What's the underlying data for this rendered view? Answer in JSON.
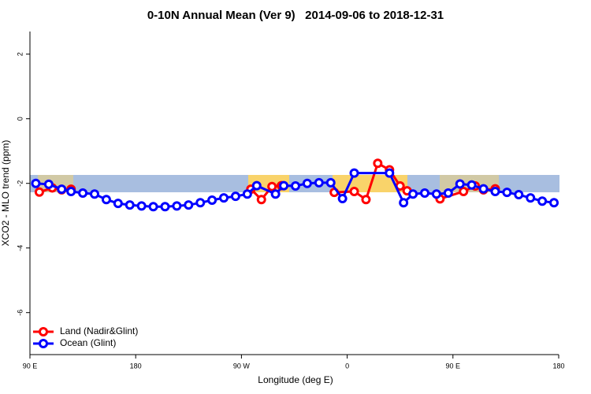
{
  "chart_data": {
    "type": "line",
    "title": "0-10N Annual Mean (Ver 9)   2014-09-06 to 2018-12-31",
    "x_label": "Longitude (deg E)",
    "y_label": "XCO2 - MLO trend (ppm)",
    "xlim": [
      90,
      540
    ],
    "ylim": [
      -7.3,
      2.7
    ],
    "xticks": [
      {
        "value": 90,
        "label": "90 E"
      },
      180,
      {
        "value": 270,
        "label": "90 W"
      },
      {
        "value": 360,
        "label": "0"
      },
      {
        "value": 450,
        "label": "90 E"
      },
      {
        "value": 540,
        "label": "180"
      }
    ],
    "yticks": [
      2,
      0,
      -2,
      -4,
      -6
    ],
    "legend": "bottom-left",
    "series": [
      {
        "name": "Land (Nadir&Glint)",
        "color": "#ff0000",
        "x": [
          98,
          109,
          117,
          125,
          null,
          278,
          287,
          296,
          304,
          null,
          349,
          366,
          376,
          386,
          396,
          405,
          411,
          null,
          439,
          459,
          469,
          476,
          486
        ],
        "values": [
          -2.27,
          -2.14,
          -2.2,
          -2.18,
          null,
          -2.18,
          -2.5,
          -2.1,
          -2.07,
          null,
          -2.28,
          -2.25,
          -2.5,
          -1.38,
          -1.58,
          -2.08,
          -2.23,
          null,
          -2.48,
          -2.25,
          -2.08,
          -2.2,
          -2.17
        ]
      },
      {
        "name": "Ocean (Glint)",
        "color": "#0000ff",
        "x": [
          95,
          106,
          117,
          125,
          135,
          145,
          155,
          165,
          175,
          185,
          195,
          205,
          215,
          225,
          235,
          245,
          255,
          265,
          275,
          283,
          299,
          306,
          316,
          326,
          336,
          346,
          356,
          366,
          396,
          408,
          416,
          426,
          436,
          446,
          456,
          466,
          476,
          486,
          496,
          506,
          516,
          526,
          536
        ],
        "values": [
          -2.0,
          -2.03,
          -2.18,
          -2.25,
          -2.3,
          -2.33,
          -2.5,
          -2.62,
          -2.67,
          -2.7,
          -2.72,
          -2.72,
          -2.7,
          -2.67,
          -2.6,
          -2.52,
          -2.45,
          -2.4,
          -2.33,
          -2.07,
          -2.33,
          -2.07,
          -2.08,
          -2.0,
          -1.98,
          -1.98,
          -2.47,
          -1.68,
          -1.68,
          -2.6,
          -2.33,
          -2.3,
          -2.33,
          -2.3,
          -2.02,
          -2.05,
          -2.17,
          -2.25,
          -2.28,
          -2.35,
          -2.45,
          -2.55,
          -2.6
        ]
      }
    ]
  }
}
